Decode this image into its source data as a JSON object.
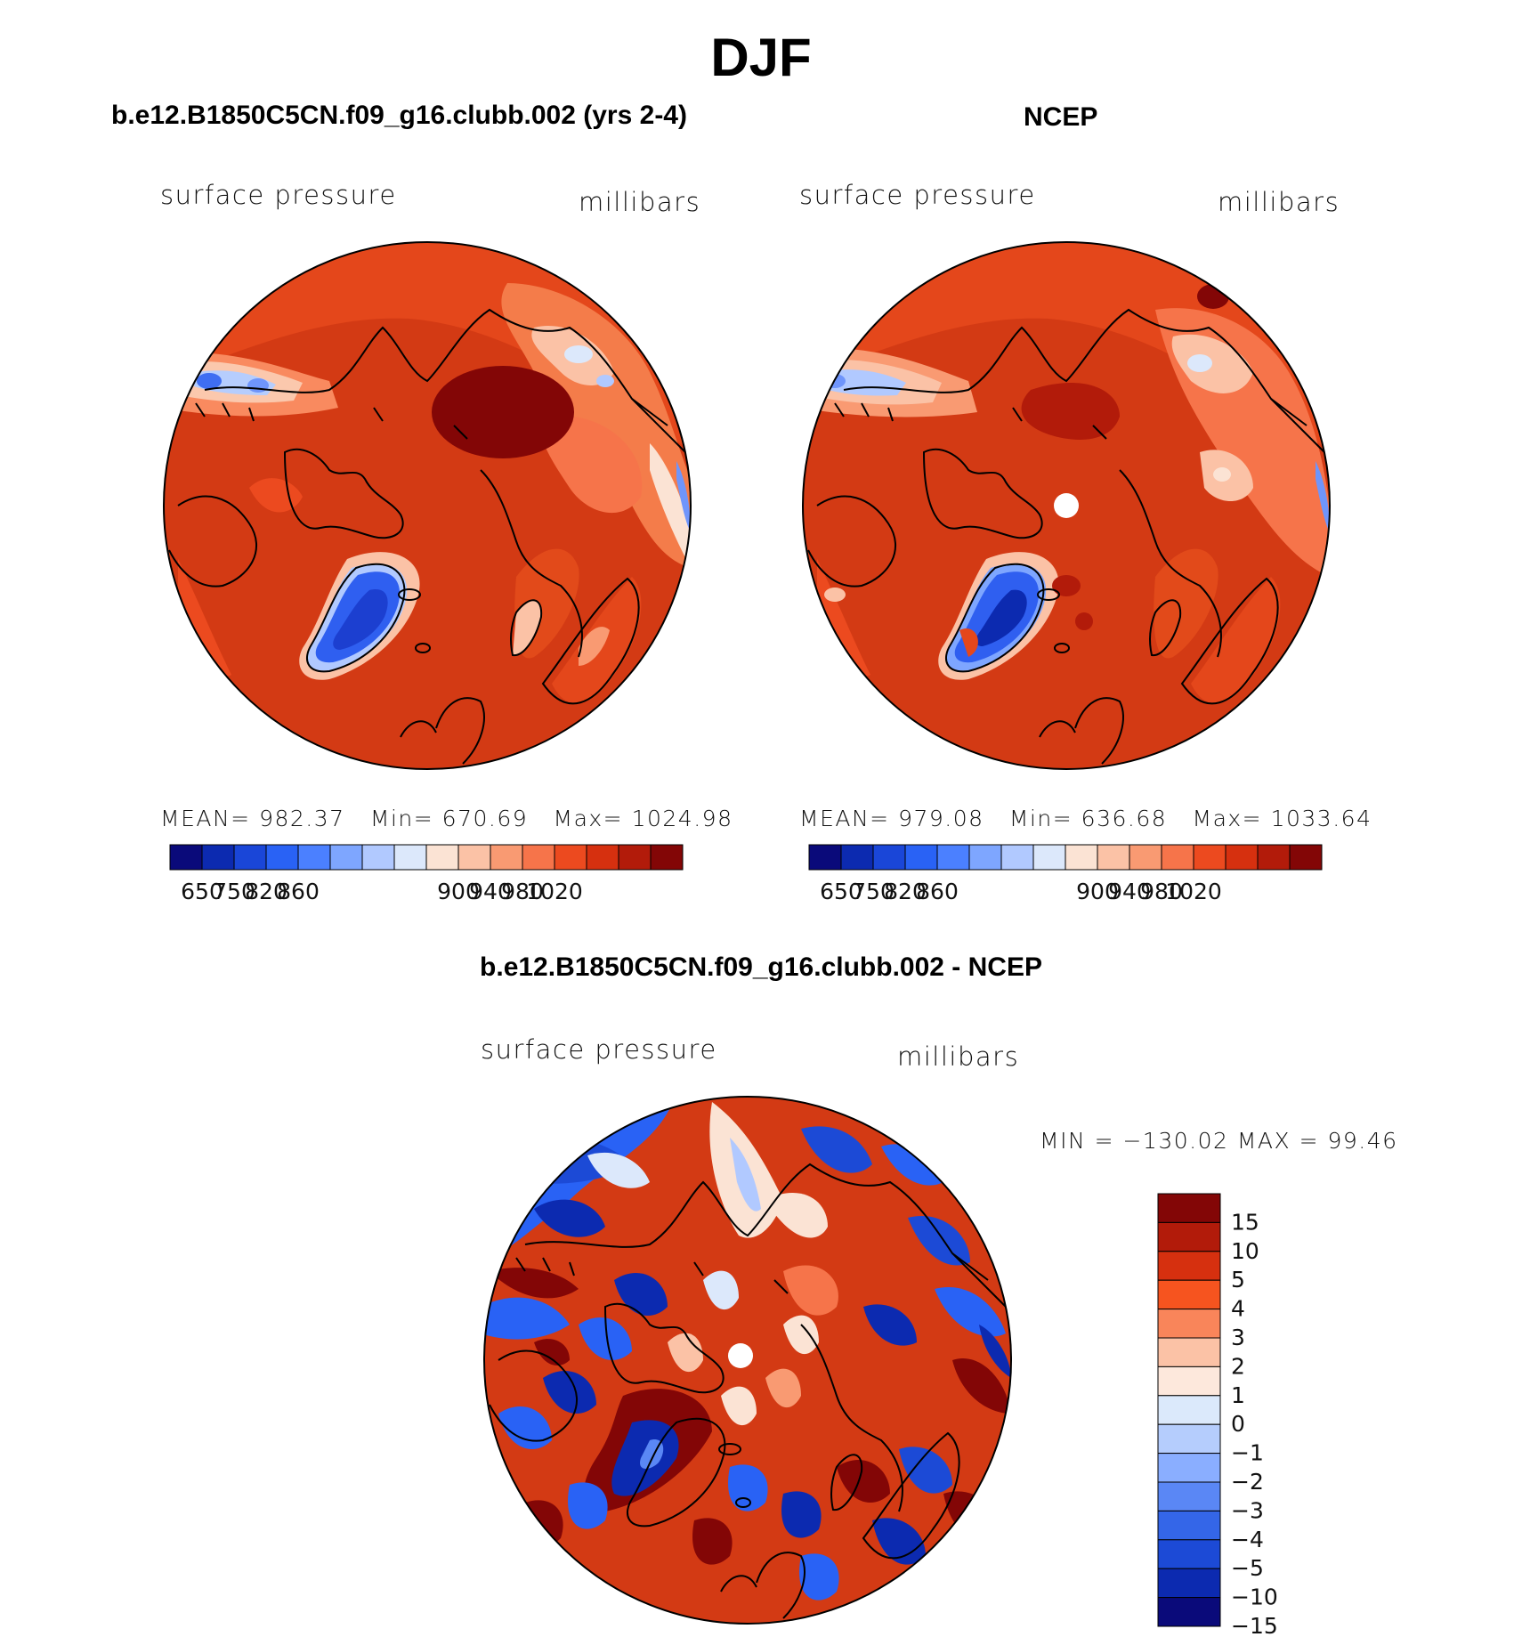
{
  "figure": {
    "title": "DJF",
    "left_panel": {
      "case_title": "b.e12.B1850C5CN.f09_g16.clubb.002 (yrs 2-4)",
      "variable": "surface pressure",
      "units": "millibars",
      "mean_label": "MEAN=",
      "mean": "982.37",
      "min_label": "Min=",
      "min": "670.69",
      "max_label": "Max=",
      "max": "1024.98"
    },
    "right_panel": {
      "case_title": "NCEP",
      "variable": "surface pressure",
      "units": "millibars",
      "mean_label": "MEAN=",
      "mean": "979.08",
      "min_label": "Min=",
      "min": "636.68",
      "max_label": "Max=",
      "max": "1033.64"
    },
    "diff_panel": {
      "case_title": "b.e12.B1850C5CN.f09_g16.clubb.002 - NCEP",
      "variable": "surface pressure",
      "units": "millibars",
      "minmax_text": "MIN = −130.02 MAX =   99.46"
    }
  },
  "colorbars": {
    "main": {
      "colors": [
        "#0a0a7a",
        "#0c2ab0",
        "#1a46d8",
        "#2962f5",
        "#4b80ff",
        "#7ea6ff",
        "#b1c9ff",
        "#dce8fb",
        "#fbe3d4",
        "#fbc2a6",
        "#f99a72",
        "#f6744a",
        "#ec4a1f",
        "#d6300f",
        "#b21b0a",
        "#830606"
      ],
      "tick_labels": [
        "650",
        "750",
        "820",
        "860",
        "900",
        "940",
        "980",
        "1020"
      ]
    },
    "diff": {
      "colors": [
        "#830606",
        "#b21b0a",
        "#d6300f",
        "#f6541f",
        "#f9855a",
        "#fbc2a6",
        "#fde8dc",
        "#dbe9fb",
        "#b5cdfd",
        "#8aaeff",
        "#5a87f5",
        "#3466e8",
        "#1c4ad6",
        "#0c2ab0",
        "#0a0a7a"
      ],
      "tick_labels": [
        "15",
        "10",
        "5",
        "4",
        "3",
        "2",
        "1",
        "0",
        "−1",
        "−2",
        "−3",
        "−4",
        "−5",
        "−10",
        "−15"
      ]
    }
  },
  "palette": {
    "land_outline": "#000000",
    "dark_red": "#8b0a05",
    "mid_red": "#c23212",
    "orange_red": "#e24a1a",
    "orange": "#f56a32",
    "salmon": "#fa9a70",
    "peach": "#fcd3bb",
    "pale_blue": "#d5e3fb",
    "light_blue": "#94b6ff",
    "blue": "#2a5cf0",
    "dark_blue": "#0b1fa0"
  }
}
